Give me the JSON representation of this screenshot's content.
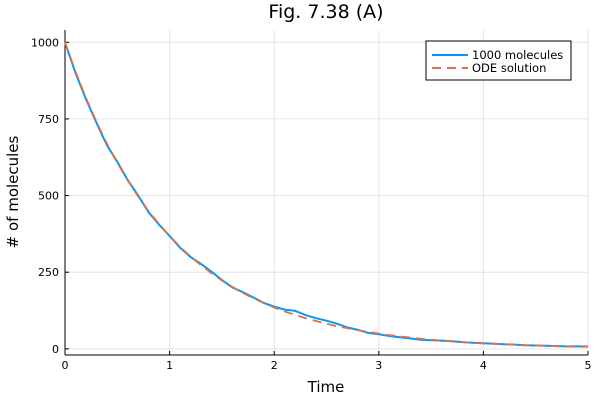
{
  "chart_data": {
    "type": "line",
    "title": "Fig. 7.38 (A)",
    "xlabel": "Time",
    "ylabel": "# of molecules",
    "xlim": [
      0,
      5
    ],
    "ylim": [
      -20,
      1040
    ],
    "xticks": [
      0,
      1,
      2,
      3,
      4,
      5
    ],
    "yticks": [
      0,
      250,
      500,
      750,
      1000
    ],
    "grid": true,
    "legend_position": "top-right",
    "x": [
      0,
      0.1,
      0.2,
      0.3,
      0.4,
      0.5,
      0.6,
      0.7,
      0.8,
      0.9,
      1.0,
      1.1,
      1.2,
      1.3,
      1.4,
      1.5,
      1.6,
      1.7,
      1.8,
      1.9,
      2.0,
      2.1,
      2.2,
      2.3,
      2.4,
      2.5,
      2.6,
      2.7,
      2.8,
      2.9,
      3.0,
      3.1,
      3.2,
      3.3,
      3.4,
      3.5,
      3.6,
      3.7,
      3.8,
      3.9,
      4.0,
      4.1,
      4.2,
      4.3,
      4.4,
      4.5,
      4.6,
      4.7,
      4.8,
      4.9,
      5.0
    ],
    "series": [
      {
        "name": "1000 molecules",
        "color": "#009af9",
        "style": "solid",
        "values": [
          1000,
          900,
          815,
          738,
          665,
          610,
          550,
          500,
          445,
          405,
          368,
          330,
          300,
          277,
          252,
          225,
          200,
          185,
          168,
          150,
          138,
          128,
          124,
          110,
          100,
          92,
          82,
          70,
          62,
          52,
          48,
          42,
          38,
          34,
          30,
          28,
          27,
          25,
          22,
          20,
          18,
          17,
          15,
          14,
          12,
          11,
          10,
          9,
          8,
          8,
          8
        ]
      },
      {
        "name": "ODE solution",
        "color": "#e26f46",
        "style": "dashed",
        "values": [
          1000,
          905,
          819,
          741,
          670,
          607,
          549,
          497,
          449,
          407,
          368,
          333,
          301,
          273,
          247,
          223,
          202,
          183,
          165,
          150,
          135,
          122,
          111,
          100,
          91,
          82,
          74,
          67,
          61,
          55,
          50,
          45,
          41,
          37,
          33,
          30,
          27,
          25,
          22,
          20,
          18,
          17,
          15,
          14,
          12,
          11,
          10,
          9,
          8,
          7,
          7
        ]
      }
    ]
  }
}
